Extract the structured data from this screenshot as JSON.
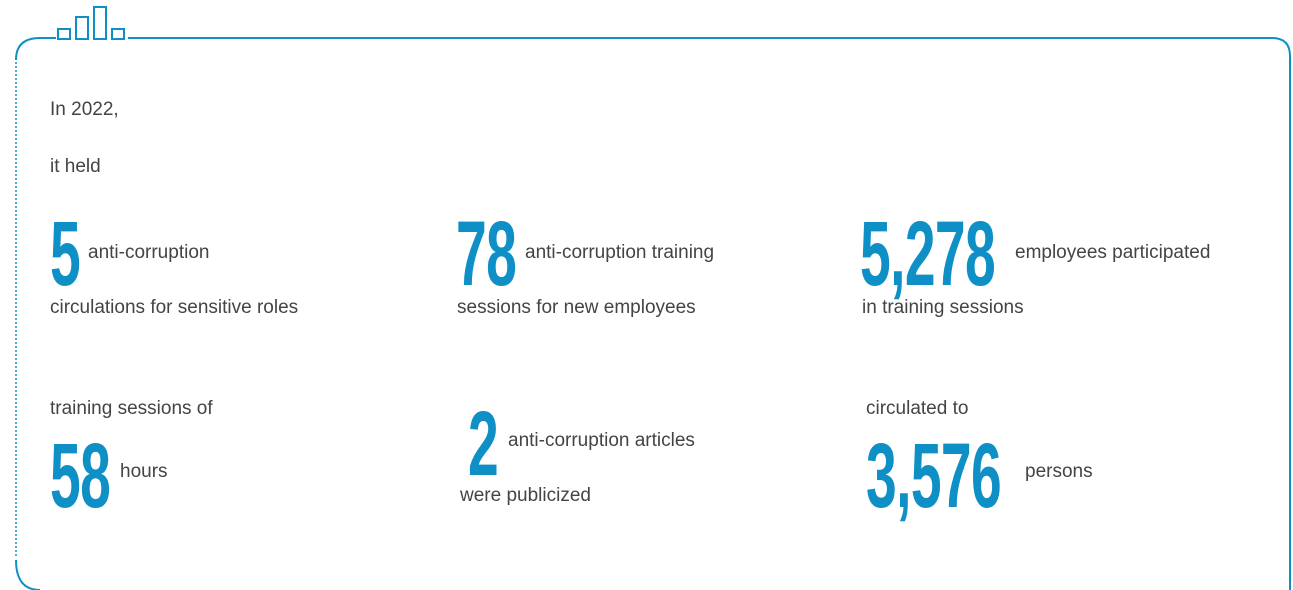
{
  "intro": [
    "In 2022,",
    "it held"
  ],
  "stats": [
    {
      "number": "5",
      "after": "anti-corruption",
      "line2": "circulations for sensitive roles"
    },
    {
      "number": "78",
      "after": "anti-corruption training",
      "line2": "sessions for new employees"
    },
    {
      "number": "5,278",
      "after": "employees participated",
      "line2": "in training sessions"
    },
    {
      "before": "training sessions of",
      "number": "58",
      "after": "hours"
    },
    {
      "number": "2",
      "after": "anti-corruption articles",
      "line2": "were publicized"
    },
    {
      "before": "circulated to",
      "number": "3,576",
      "after": "persons"
    }
  ]
}
